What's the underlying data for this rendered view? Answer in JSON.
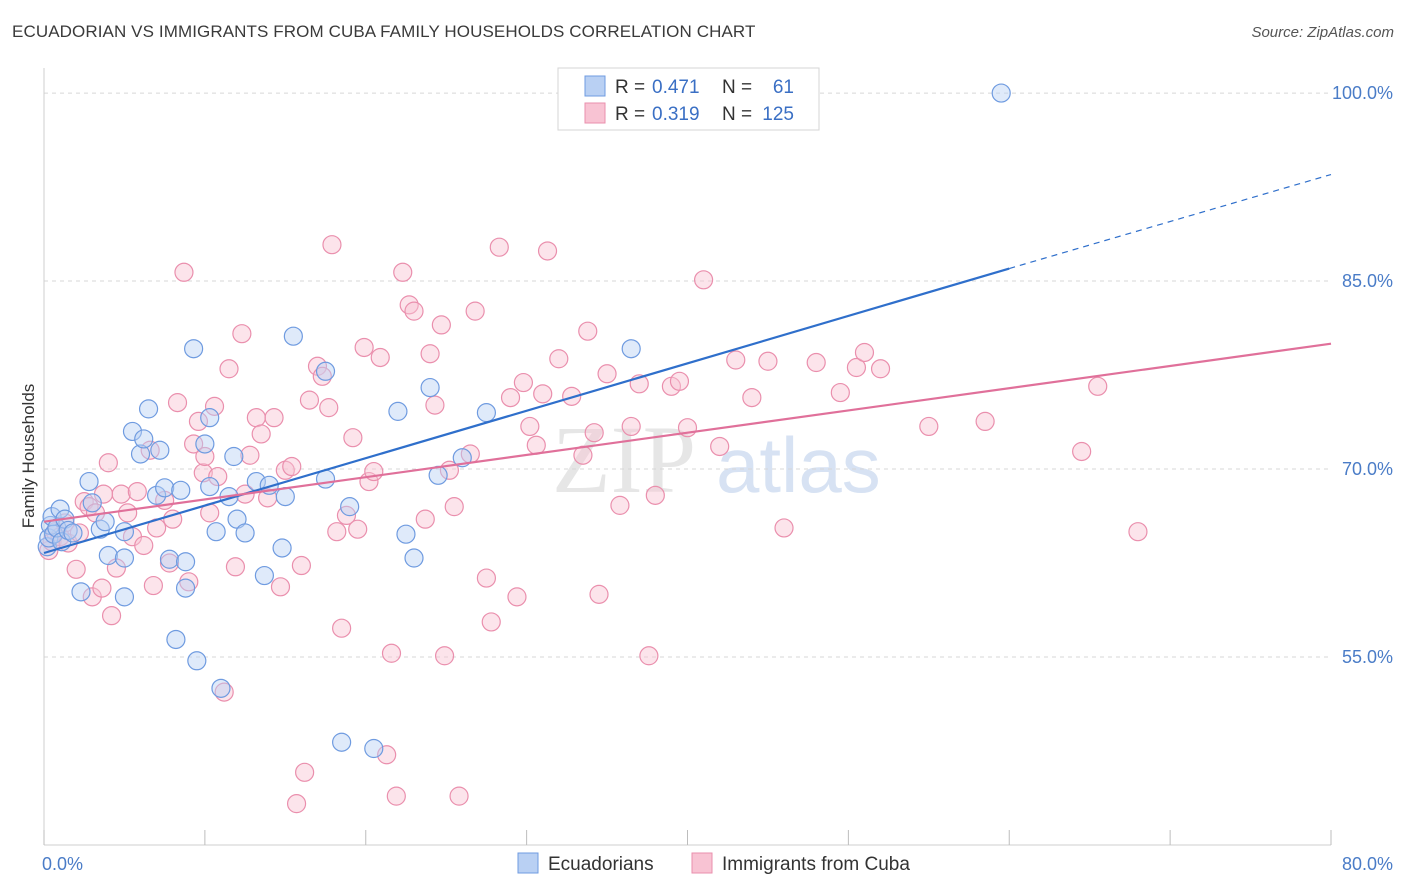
{
  "title": "ECUADORIAN VS IMMIGRANTS FROM CUBA FAMILY HOUSEHOLDS CORRELATION CHART",
  "source": "Source: ZipAtlas.com",
  "watermark": {
    "zip": "ZIP",
    "atlas": "atlas"
  },
  "colors": {
    "blue_fill": "#b9d0f3",
    "blue_stroke": "#6f9be0",
    "blue_line": "#2f6fcb",
    "pink_fill": "#f8c3d3",
    "pink_stroke": "#ea8fad",
    "pink_line": "#e0709a",
    "grid": "#d7d7d7",
    "tick_label": "#4a7cc7"
  },
  "legend": {
    "rows": [
      {
        "r_label": "R =",
        "r_value": "0.471",
        "n_label": "N =",
        "n_value": "61"
      },
      {
        "r_label": "R =",
        "r_value": "0.319",
        "n_label": "N =",
        "n_value": "125"
      }
    ]
  },
  "chart_data": {
    "type": "scatter",
    "title": "ECUADORIAN VS IMMIGRANTS FROM CUBA FAMILY HOUSEHOLDS CORRELATION CHART",
    "xlabel": "",
    "ylabel": "Family Households",
    "xlim": [
      0,
      80
    ],
    "ylim": [
      40,
      102
    ],
    "x_tick_labels": [
      "0.0%",
      "80.0%"
    ],
    "y_ticks": [
      55,
      70,
      85,
      100
    ],
    "y_tick_labels": [
      "55.0%",
      "70.0%",
      "85.0%",
      "100.0%"
    ],
    "grid": true,
    "legend_position": "top-center",
    "series": [
      {
        "name": "Ecuadorians",
        "color": "#b9d0f3",
        "trend": {
          "x0": 0,
          "y0": 63.3,
          "x1": 60,
          "y1": 86.0,
          "dash_to_x": 80,
          "dash_to_y": 93.5
        },
        "points": [
          [
            0.2,
            63.8
          ],
          [
            0.3,
            64.5
          ],
          [
            0.4,
            65.5
          ],
          [
            0.5,
            66.2
          ],
          [
            0.6,
            64.8
          ],
          [
            0.8,
            65.3
          ],
          [
            1.0,
            66.8
          ],
          [
            1.1,
            64.2
          ],
          [
            1.3,
            66.0
          ],
          [
            1.5,
            65.1
          ],
          [
            1.8,
            64.9
          ],
          [
            2.3,
            60.2
          ],
          [
            2.8,
            69.0
          ],
          [
            3.0,
            67.3
          ],
          [
            3.5,
            65.2
          ],
          [
            3.8,
            65.8
          ],
          [
            4.0,
            63.1
          ],
          [
            5.0,
            65.0
          ],
          [
            5.0,
            62.9
          ],
          [
            5.0,
            59.8
          ],
          [
            5.5,
            73.0
          ],
          [
            6.0,
            71.2
          ],
          [
            6.2,
            72.4
          ],
          [
            6.5,
            74.8
          ],
          [
            7.0,
            67.9
          ],
          [
            7.2,
            71.5
          ],
          [
            7.5,
            68.5
          ],
          [
            7.8,
            62.8
          ],
          [
            8.5,
            68.3
          ],
          [
            8.2,
            56.4
          ],
          [
            8.8,
            62.6
          ],
          [
            8.8,
            60.5
          ],
          [
            9.3,
            79.6
          ],
          [
            9.5,
            54.7
          ],
          [
            10.0,
            72.0
          ],
          [
            10.3,
            68.6
          ],
          [
            10.3,
            74.1
          ],
          [
            10.7,
            65.0
          ],
          [
            11.0,
            52.5
          ],
          [
            11.5,
            67.8
          ],
          [
            11.8,
            71.0
          ],
          [
            12.0,
            66.0
          ],
          [
            12.5,
            64.9
          ],
          [
            13.2,
            69.0
          ],
          [
            13.7,
            61.5
          ],
          [
            14.0,
            68.7
          ],
          [
            14.8,
            63.7
          ],
          [
            15.0,
            67.8
          ],
          [
            15.5,
            80.6
          ],
          [
            17.5,
            77.8
          ],
          [
            17.5,
            69.2
          ],
          [
            18.5,
            48.2
          ],
          [
            19.0,
            67.0
          ],
          [
            20.5,
            47.7
          ],
          [
            22.0,
            74.6
          ],
          [
            22.5,
            64.8
          ],
          [
            23.0,
            62.9
          ],
          [
            24.0,
            76.5
          ],
          [
            24.5,
            69.5
          ],
          [
            26.0,
            70.9
          ],
          [
            27.5,
            74.5
          ],
          [
            36.5,
            79.6
          ],
          [
            59.5,
            100.0
          ]
        ]
      },
      {
        "name": "Immigrants from Cuba",
        "color": "#f8c3d3",
        "trend": {
          "x0": 0,
          "y0": 65.8,
          "x1": 80,
          "y1": 80.0
        },
        "points": [
          [
            0.3,
            63.5
          ],
          [
            0.5,
            64.2
          ],
          [
            0.7,
            65.0
          ],
          [
            1.0,
            64.6
          ],
          [
            1.3,
            65.7
          ],
          [
            1.5,
            64.1
          ],
          [
            2.0,
            62.0
          ],
          [
            2.2,
            64.9
          ],
          [
            2.5,
            67.4
          ],
          [
            2.8,
            67.0
          ],
          [
            3.0,
            59.8
          ],
          [
            3.2,
            66.5
          ],
          [
            3.6,
            60.5
          ],
          [
            3.7,
            68.0
          ],
          [
            4.0,
            70.5
          ],
          [
            4.2,
            58.3
          ],
          [
            4.5,
            62.1
          ],
          [
            4.8,
            68.0
          ],
          [
            5.2,
            66.5
          ],
          [
            5.5,
            64.6
          ],
          [
            5.8,
            68.2
          ],
          [
            6.2,
            63.9
          ],
          [
            6.6,
            71.5
          ],
          [
            6.8,
            60.7
          ],
          [
            7.0,
            65.3
          ],
          [
            7.5,
            67.5
          ],
          [
            7.8,
            62.5
          ],
          [
            8.0,
            66.0
          ],
          [
            8.3,
            75.3
          ],
          [
            8.7,
            85.7
          ],
          [
            9.0,
            61.0
          ],
          [
            9.3,
            72.0
          ],
          [
            9.6,
            73.8
          ],
          [
            9.9,
            69.7
          ],
          [
            10.0,
            71.0
          ],
          [
            10.3,
            66.5
          ],
          [
            10.6,
            75.0
          ],
          [
            10.8,
            69.4
          ],
          [
            11.2,
            52.2
          ],
          [
            11.5,
            78.0
          ],
          [
            11.9,
            62.2
          ],
          [
            12.3,
            80.8
          ],
          [
            12.5,
            68.0
          ],
          [
            12.8,
            71.1
          ],
          [
            13.2,
            74.1
          ],
          [
            13.5,
            72.8
          ],
          [
            13.9,
            67.7
          ],
          [
            14.3,
            74.1
          ],
          [
            14.7,
            60.6
          ],
          [
            15.0,
            69.9
          ],
          [
            15.4,
            70.2
          ],
          [
            15.7,
            43.3
          ],
          [
            16.0,
            62.3
          ],
          [
            16.2,
            45.8
          ],
          [
            16.5,
            75.5
          ],
          [
            17.0,
            78.2
          ],
          [
            17.3,
            77.4
          ],
          [
            17.7,
            74.9
          ],
          [
            17.9,
            87.9
          ],
          [
            18.2,
            65.0
          ],
          [
            18.5,
            57.3
          ],
          [
            18.8,
            66.3
          ],
          [
            19.2,
            72.5
          ],
          [
            19.5,
            65.2
          ],
          [
            19.9,
            79.7
          ],
          [
            20.2,
            69.0
          ],
          [
            20.5,
            69.8
          ],
          [
            20.9,
            78.9
          ],
          [
            21.3,
            47.2
          ],
          [
            21.6,
            55.3
          ],
          [
            21.9,
            43.9
          ],
          [
            22.3,
            85.7
          ],
          [
            22.7,
            83.1
          ],
          [
            23.0,
            82.6
          ],
          [
            23.7,
            66.0
          ],
          [
            24.0,
            79.2
          ],
          [
            24.3,
            75.1
          ],
          [
            24.7,
            81.5
          ],
          [
            24.9,
            55.1
          ],
          [
            25.2,
            69.9
          ],
          [
            25.5,
            67.0
          ],
          [
            25.8,
            43.9
          ],
          [
            26.5,
            71.2
          ],
          [
            26.8,
            82.6
          ],
          [
            27.5,
            61.3
          ],
          [
            27.8,
            57.8
          ],
          [
            28.3,
            87.7
          ],
          [
            29.0,
            75.7
          ],
          [
            29.4,
            59.8
          ],
          [
            29.8,
            76.9
          ],
          [
            30.2,
            73.4
          ],
          [
            30.6,
            71.9
          ],
          [
            31.0,
            76.0
          ],
          [
            31.3,
            87.4
          ],
          [
            32.0,
            78.8
          ],
          [
            32.8,
            75.8
          ],
          [
            33.5,
            71.1
          ],
          [
            33.8,
            81.0
          ],
          [
            34.2,
            72.9
          ],
          [
            34.5,
            60.0
          ],
          [
            35.0,
            77.6
          ],
          [
            35.8,
            67.1
          ],
          [
            36.5,
            73.4
          ],
          [
            37.0,
            76.8
          ],
          [
            37.6,
            55.1
          ],
          [
            38.0,
            67.9
          ],
          [
            39.0,
            76.6
          ],
          [
            39.5,
            77.0
          ],
          [
            40.0,
            73.3
          ],
          [
            41.0,
            85.1
          ],
          [
            42.0,
            71.8
          ],
          [
            43.0,
            78.7
          ],
          [
            44.0,
            75.7
          ],
          [
            45.0,
            78.6
          ],
          [
            46.0,
            65.3
          ],
          [
            48.0,
            78.5
          ],
          [
            49.5,
            76.1
          ],
          [
            50.5,
            78.1
          ],
          [
            51.0,
            79.3
          ],
          [
            52.0,
            78.0
          ],
          [
            55.0,
            73.4
          ],
          [
            58.5,
            73.8
          ],
          [
            64.5,
            71.4
          ],
          [
            65.5,
            76.6
          ],
          [
            68.0,
            65.0
          ]
        ]
      }
    ]
  },
  "bottom_legend": [
    "Ecuadorians",
    "Immigrants from Cuba"
  ]
}
